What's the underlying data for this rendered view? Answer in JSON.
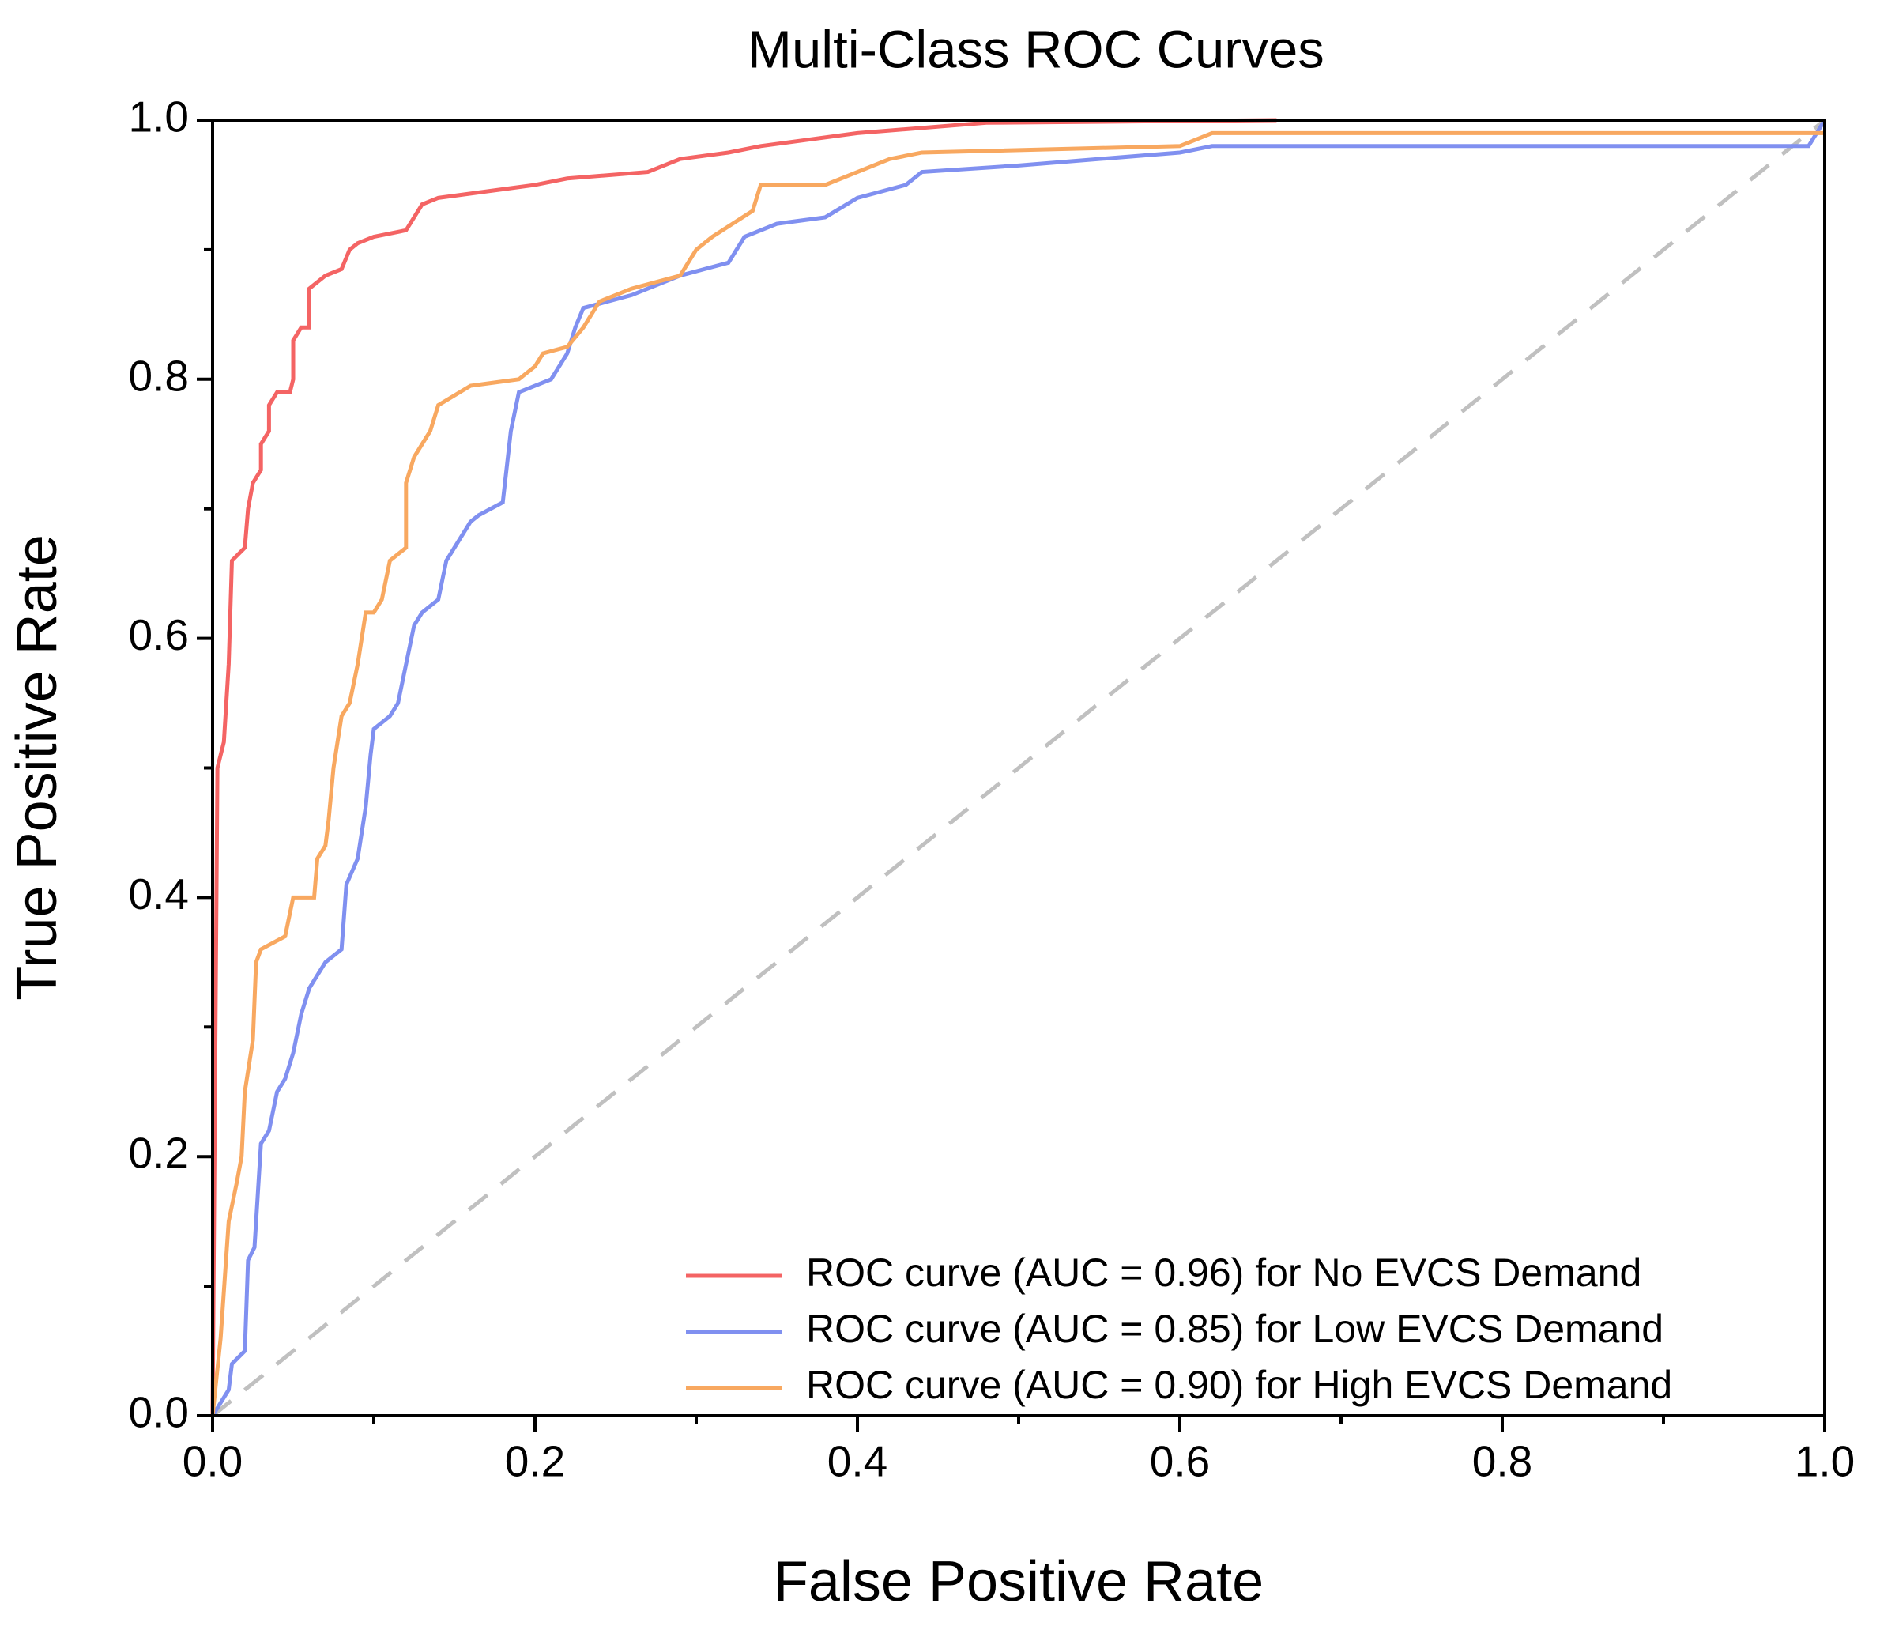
{
  "chart_data": {
    "type": "line",
    "title": "Multi-Class ROC Curves",
    "x_label": "False Positive Rate",
    "y_label": "True Positive Rate",
    "xlim": [
      0.0,
      1.0
    ],
    "ylim": [
      0.0,
      1.0
    ],
    "xticks": [
      {
        "value": 0,
        "label": "0.0"
      },
      0.2,
      0.4,
      0.6,
      0.8,
      {
        "value": 1,
        "label": "1.0"
      }
    ],
    "yticks": [
      {
        "value": 0,
        "label": "0.0"
      },
      0.2,
      0.4,
      0.6,
      0.8,
      {
        "value": 1,
        "label": "1.0"
      }
    ],
    "xminorticks": [
      0.1,
      0.3,
      0.5,
      0.7,
      0.9
    ],
    "yminorticks": [
      0.1,
      0.3,
      0.5,
      0.7,
      0.9
    ],
    "legend": "lower right",
    "reference_line": {
      "color": "#c0c0c0",
      "dashed": true
    },
    "series": [
      {
        "name": "ROC curve (AUC = 0.96) for No EVCS Demand",
        "color": "#f46464",
        "x": [
          0,
          0.003,
          0.007,
          0.01,
          0.012,
          0.02,
          0.022,
          0.025,
          0.03,
          0.03,
          0.035,
          0.035,
          0.04,
          0.048,
          0.05,
          0.05,
          0.055,
          0.06,
          0.06,
          0.07,
          0.08,
          0.085,
          0.09,
          0.1,
          0.12,
          0.125,
          0.13,
          0.14,
          0.17,
          0.2,
          0.22,
          0.27,
          0.29,
          0.32,
          0.34,
          0.4,
          0.48,
          0.66
        ],
        "values": [
          0,
          0.5,
          0.52,
          0.58,
          0.66,
          0.67,
          0.7,
          0.72,
          0.73,
          0.75,
          0.76,
          0.78,
          0.79,
          0.79,
          0.8,
          0.83,
          0.84,
          0.84,
          0.87,
          0.88,
          0.885,
          0.9,
          0.905,
          0.91,
          0.915,
          0.925,
          0.935,
          0.94,
          0.945,
          0.95,
          0.955,
          0.96,
          0.97,
          0.975,
          0.98,
          0.99,
          0.998,
          1.0
        ]
      },
      {
        "name": "ROC curve (AUC = 0.85) for Low EVCS Demand",
        "color": "#8090f0",
        "x": [
          0,
          0.005,
          0.01,
          0.012,
          0.02,
          0.022,
          0.026,
          0.03,
          0.035,
          0.04,
          0.045,
          0.05,
          0.055,
          0.06,
          0.065,
          0.07,
          0.08,
          0.083,
          0.09,
          0.095,
          0.098,
          0.1,
          0.11,
          0.115,
          0.12,
          0.125,
          0.13,
          0.14,
          0.145,
          0.15,
          0.16,
          0.165,
          0.18,
          0.185,
          0.19,
          0.21,
          0.22,
          0.225,
          0.23,
          0.26,
          0.29,
          0.32,
          0.33,
          0.35,
          0.38,
          0.4,
          0.43,
          0.44,
          0.5,
          0.55,
          0.6,
          0.62,
          0.99,
          1.0
        ],
        "values": [
          0,
          0.01,
          0.02,
          0.04,
          0.05,
          0.12,
          0.13,
          0.21,
          0.22,
          0.25,
          0.26,
          0.28,
          0.31,
          0.33,
          0.34,
          0.35,
          0.36,
          0.41,
          0.43,
          0.47,
          0.51,
          0.53,
          0.54,
          0.55,
          0.58,
          0.61,
          0.62,
          0.63,
          0.66,
          0.67,
          0.69,
          0.695,
          0.705,
          0.76,
          0.79,
          0.8,
          0.82,
          0.84,
          0.855,
          0.865,
          0.88,
          0.89,
          0.91,
          0.92,
          0.925,
          0.94,
          0.95,
          0.96,
          0.965,
          0.97,
          0.975,
          0.98,
          0.98,
          1.0
        ]
      },
      {
        "name": "ROC curve (AUC = 0.90) for High EVCS Demand",
        "color": "#f8a860",
        "x": [
          0,
          0.005,
          0.01,
          0.015,
          0.018,
          0.02,
          0.025,
          0.027,
          0.03,
          0.045,
          0.05,
          0.063,
          0.065,
          0.07,
          0.072,
          0.075,
          0.08,
          0.085,
          0.09,
          0.095,
          0.1,
          0.105,
          0.11,
          0.12,
          0.12,
          0.125,
          0.13,
          0.135,
          0.14,
          0.16,
          0.19,
          0.2,
          0.205,
          0.22,
          0.23,
          0.24,
          0.26,
          0.29,
          0.3,
          0.31,
          0.335,
          0.34,
          0.38,
          0.4,
          0.42,
          0.44,
          0.6,
          0.62,
          1.0
        ],
        "values": [
          0,
          0.06,
          0.15,
          0.18,
          0.2,
          0.25,
          0.29,
          0.35,
          0.36,
          0.37,
          0.4,
          0.4,
          0.43,
          0.44,
          0.46,
          0.5,
          0.54,
          0.55,
          0.58,
          0.62,
          0.62,
          0.63,
          0.66,
          0.67,
          0.72,
          0.74,
          0.75,
          0.76,
          0.78,
          0.795,
          0.8,
          0.81,
          0.82,
          0.825,
          0.84,
          0.86,
          0.87,
          0.88,
          0.9,
          0.91,
          0.93,
          0.95,
          0.95,
          0.96,
          0.97,
          0.975,
          0.98,
          0.99,
          0.99
        ]
      }
    ]
  }
}
